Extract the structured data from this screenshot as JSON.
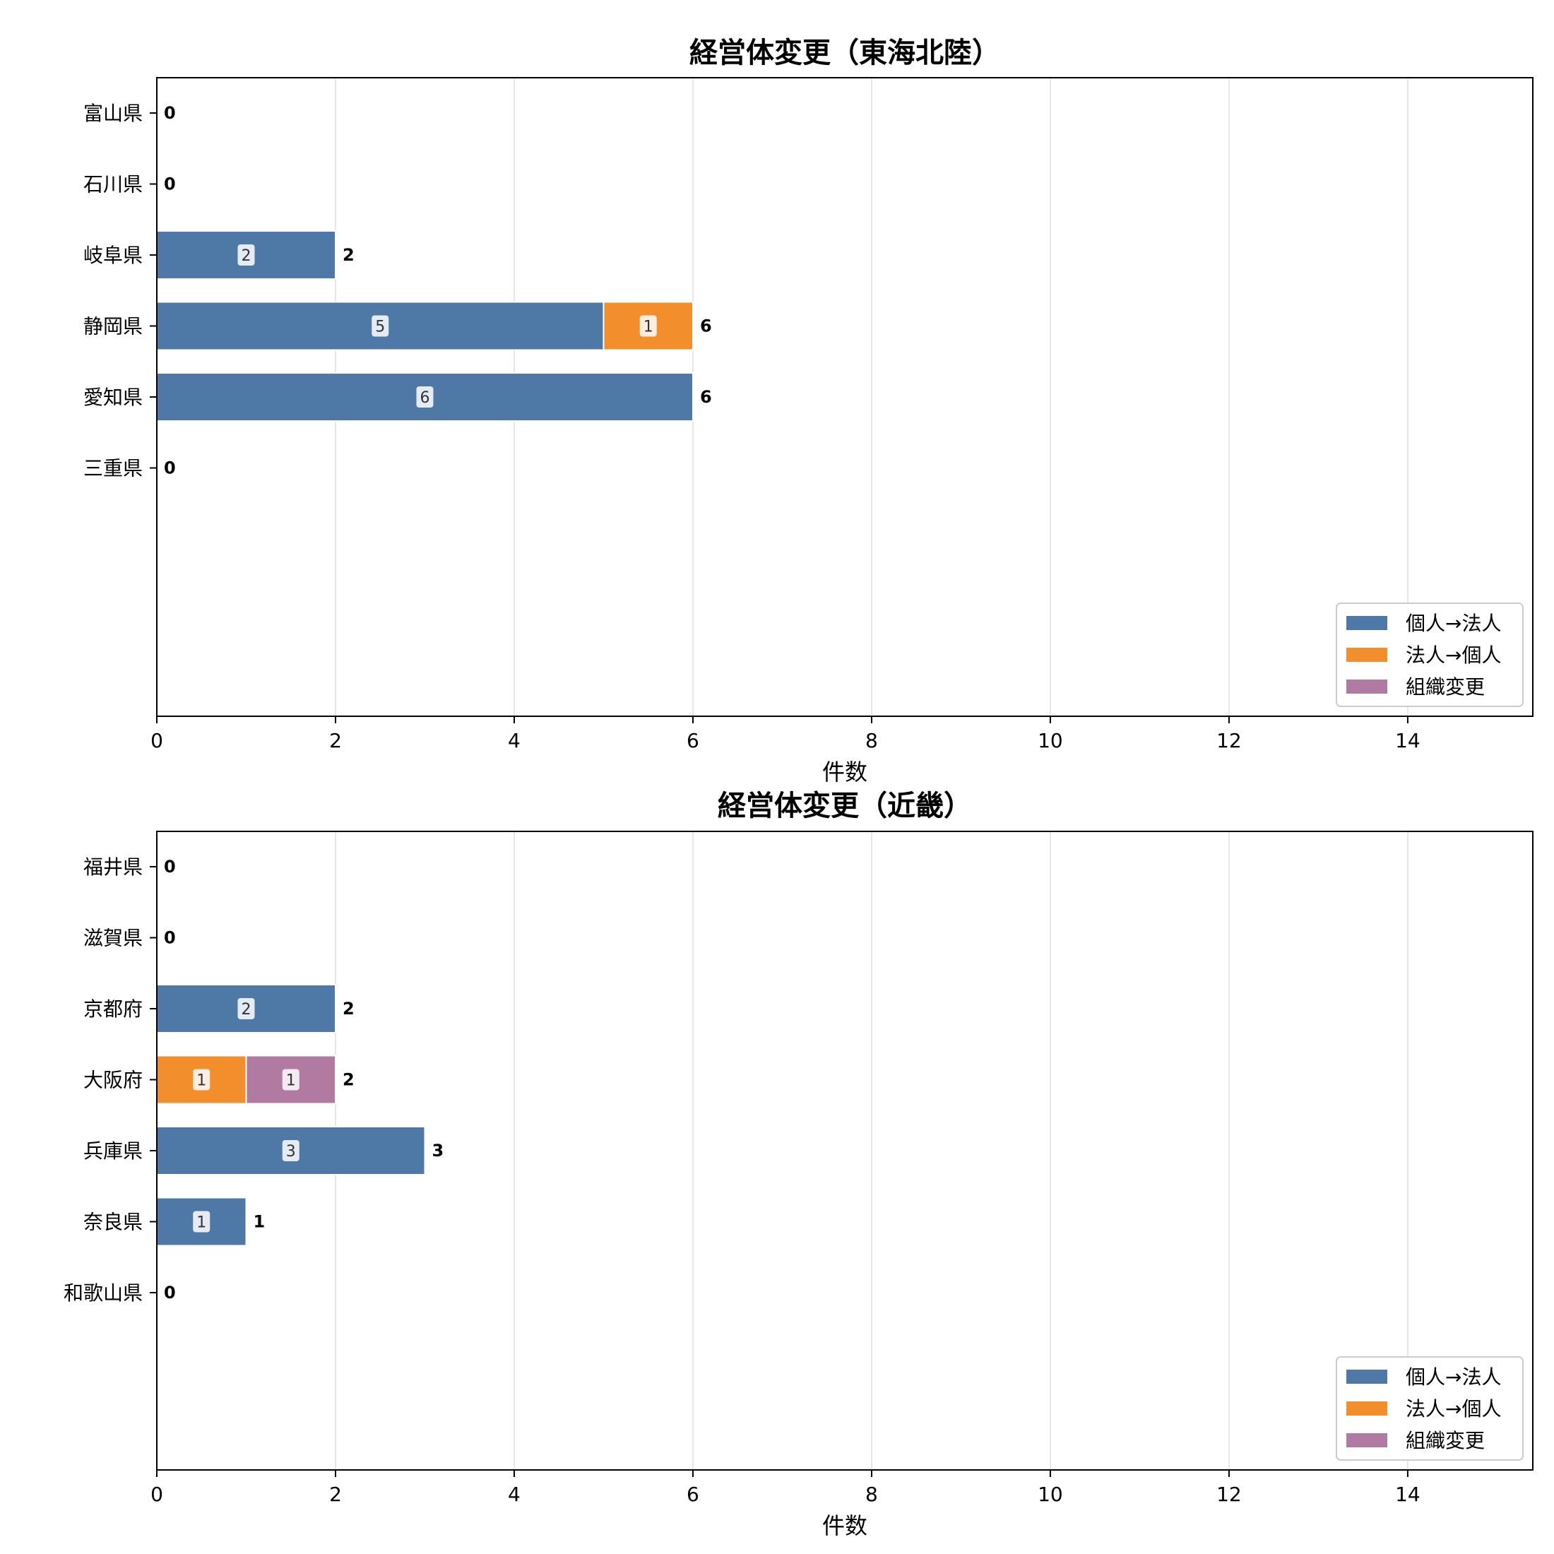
{
  "chart_data": [
    {
      "type": "bar",
      "orientation": "horizontal",
      "stacked": true,
      "title": "経営体変更（東海北陸）",
      "xlabel": "件数",
      "xlim": [
        0,
        15.4
      ],
      "xticks": [
        0,
        2,
        4,
        6,
        8,
        10,
        12,
        14
      ],
      "grid": "x",
      "legend_position": "bottom-right",
      "categories": [
        "富山県",
        "石川県",
        "岐阜県",
        "静岡県",
        "愛知県",
        "三重県"
      ],
      "series": [
        {
          "name": "個人→法人",
          "color": "#4e79a7",
          "values": [
            0,
            0,
            2,
            5,
            6,
            0
          ]
        },
        {
          "name": "法人→個人",
          "color": "#f28e2b",
          "values": [
            0,
            0,
            0,
            1,
            0,
            0
          ]
        },
        {
          "name": "組織変更",
          "color": "#b07aa1",
          "values": [
            0,
            0,
            0,
            0,
            0,
            0
          ]
        }
      ],
      "totals": [
        0,
        0,
        2,
        6,
        6,
        0
      ]
    },
    {
      "type": "bar",
      "orientation": "horizontal",
      "stacked": true,
      "title": "経営体変更（近畿）",
      "xlabel": "件数",
      "xlim": [
        0,
        15.4
      ],
      "xticks": [
        0,
        2,
        4,
        6,
        8,
        10,
        12,
        14
      ],
      "grid": "x",
      "legend_position": "bottom-right",
      "categories": [
        "福井県",
        "滋賀県",
        "京都府",
        "大阪府",
        "兵庫県",
        "奈良県",
        "和歌山県"
      ],
      "series": [
        {
          "name": "個人→法人",
          "color": "#4e79a7",
          "values": [
            0,
            0,
            2,
            0,
            3,
            1,
            0
          ]
        },
        {
          "name": "法人→個人",
          "color": "#f28e2b",
          "values": [
            0,
            0,
            0,
            1,
            0,
            0,
            0
          ]
        },
        {
          "name": "組織変更",
          "color": "#b07aa1",
          "values": [
            0,
            0,
            0,
            1,
            0,
            0,
            0
          ]
        }
      ],
      "totals": [
        0,
        0,
        2,
        2,
        3,
        1,
        0
      ]
    }
  ]
}
